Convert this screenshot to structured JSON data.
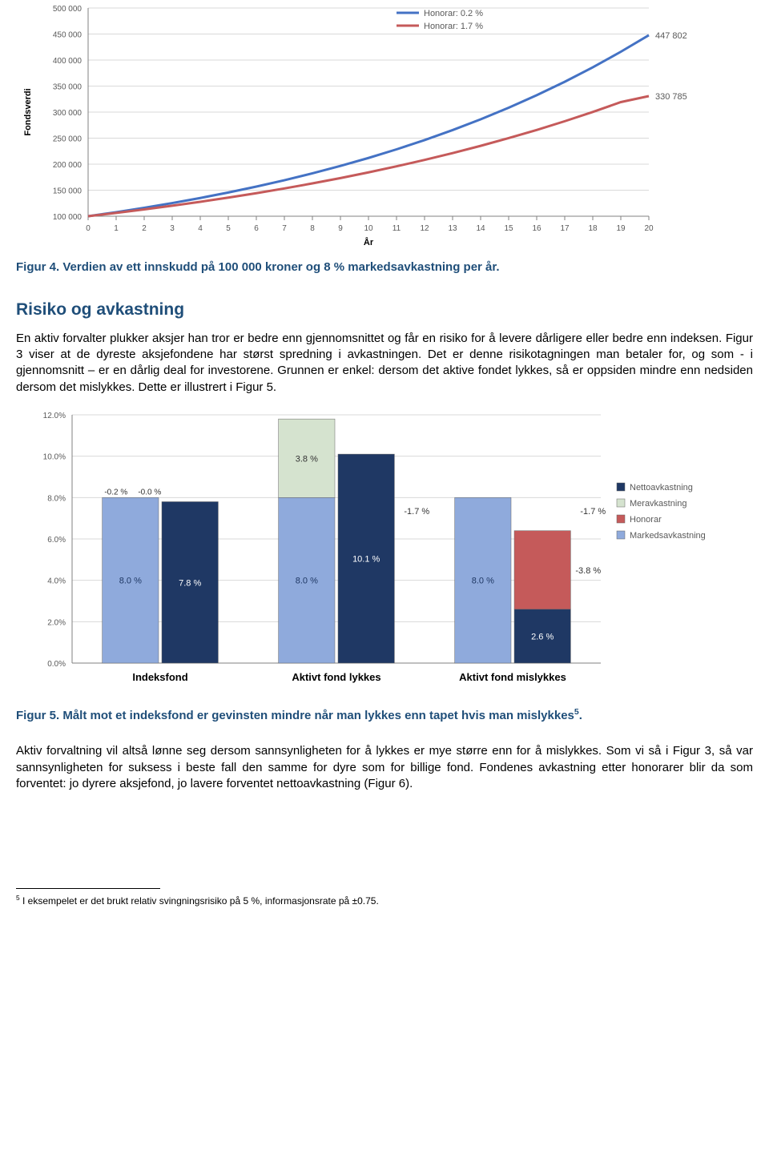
{
  "chart1": {
    "type": "line",
    "ylabel": "Fondsverdi",
    "xlabel": "År",
    "xlim": [
      0,
      20
    ],
    "xtick_step": 1,
    "ylim": [
      100000,
      500000
    ],
    "ytick_step": 50000,
    "yticks_labels": [
      "100 000",
      "150 000",
      "200 000",
      "250 000",
      "300 000",
      "350 000",
      "400 000",
      "450 000",
      "500 000"
    ],
    "background_color": "#ffffff",
    "grid_color": "#d9d9d9",
    "axis_color": "#808080",
    "label_fontsize": 11,
    "tick_fontsize": 10,
    "series": [
      {
        "name": "Honorar: 0.2 %",
        "color": "#4472c4",
        "line_width": 3,
        "x": [
          0,
          1,
          2,
          3,
          4,
          5,
          6,
          7,
          8,
          9,
          10,
          11,
          12,
          13,
          14,
          15,
          16,
          17,
          18,
          19,
          20
        ],
        "y": [
          100000,
          107800,
          116208,
          125272,
          135043,
          145575,
          156929,
          169169,
          182365,
          196590,
          211926,
          228459,
          246279,
          265483,
          286172,
          308454,
          332444,
          358270,
          386059,
          415952,
          447802
        ],
        "end_label": "447 802"
      },
      {
        "name": "Honorar: 1.7 %",
        "color": "#c55a5a",
        "line_width": 3,
        "x": [
          0,
          1,
          2,
          3,
          4,
          5,
          6,
          7,
          8,
          9,
          10,
          11,
          12,
          13,
          14,
          15,
          16,
          17,
          18,
          19,
          20
        ],
        "y": [
          100000,
          106300,
          113000,
          120118,
          127685,
          135729,
          144280,
          153369,
          163031,
          173302,
          184219,
          195823,
          208158,
          221269,
          235206,
          250019,
          265765,
          282503,
          300300,
          319219,
          330785
        ],
        "end_label": "330 785"
      }
    ]
  },
  "caption1": "Figur 4. Verdien av ett innskudd på 100 000 kroner og 8 % markedsavkastning per år.",
  "section_title": "Risiko og avkastning",
  "para1": "En aktiv forvalter plukker aksjer han tror er bedre enn gjennomsnittet og får en risiko for å levere dårligere eller bedre enn indeksen. Figur 3 viser at de dyreste aksjefondene har størst spredning i avkastningen. Det er denne risikotagningen man betaler for, og som - i gjennomsnitt – er en dårlig deal for investorene. Grunnen er enkel: dersom det aktive fondet lykkes, så er oppsiden mindre enn nedsiden dersom det mislykkes. Dette er illustrert i Figur 5.",
  "chart2": {
    "type": "stacked-bar",
    "xlabel_fontsize": 13,
    "ylabel_fontsize": 10,
    "ylim": [
      0,
      12
    ],
    "ytick_step": 2,
    "yticks_labels": [
      "0.0%",
      "2.0%",
      "4.0%",
      "6.0%",
      "8.0%",
      "10.0%",
      "12.0%"
    ],
    "background_color": "#ffffff",
    "grid_color": "#d9d9d9",
    "axis_color": "#808080",
    "xlabel_weight": "bold",
    "bar_width": 0.32,
    "legend": [
      {
        "label": "Nettoavkastning",
        "color": "#1f3864"
      },
      {
        "label": "Meravkastning",
        "color": "#d5e3cf"
      },
      {
        "label": "Honorar",
        "color": "#c55a5a"
      },
      {
        "label": "Markedsavkastning",
        "color": "#8faadc"
      }
    ],
    "categories": [
      {
        "name": "Indeksfond",
        "left": {
          "segments": [
            {
              "key": "markedsavkastning",
              "value": 8.0,
              "label": "8.0 %",
              "color": "#8faadc"
            }
          ],
          "top_labels": [
            "-0.2 %",
            "-0.0 %"
          ]
        },
        "right": {
          "segments": [
            {
              "key": "nettoavkastning",
              "value": 7.8,
              "label": "7.8 %",
              "color": "#1f3864"
            }
          ]
        }
      },
      {
        "name": "Aktivt fond lykkes",
        "left": {
          "segments": [
            {
              "key": "markedsavkastning",
              "value": 8.0,
              "label": "8.0 %",
              "color": "#8faadc"
            },
            {
              "key": "meravkastning",
              "value": 3.8,
              "label": "3.8 %",
              "color": "#d5e3cf"
            }
          ],
          "float_label": {
            "text": "-1.7 %",
            "y": 7.2
          }
        },
        "right": {
          "segments": [
            {
              "key": "nettoavkastning",
              "value": 10.1,
              "label": "10.1 %",
              "color": "#1f3864"
            }
          ]
        }
      },
      {
        "name": "Aktivt fond mislykkes",
        "left": {
          "segments": [
            {
              "key": "markedsavkastning",
              "value": 8.0,
              "label": "8.0 %",
              "color": "#8faadc"
            }
          ],
          "float_label": {
            "text": "-1.7 %",
            "y": 7.2
          }
        },
        "right": {
          "segments": [
            {
              "key": "nettoavkastning",
              "value": 2.6,
              "label": "2.6 %",
              "color": "#1f3864"
            }
          ],
          "float_negative": {
            "text": "-3.8 %",
            "y_top": 6.4,
            "y_bot": 2.6,
            "color": "#c55a5a"
          }
        }
      }
    ]
  },
  "caption2_prefix": "Figur 5. Målt mot et indeksfond er gevinsten mindre når man lykkes enn tapet hvis man mislykkes",
  "caption2_sup": "5",
  "caption2_suffix": ".",
  "para2": "Aktiv forvaltning vil altså lønne seg dersom sannsynligheten for å lykkes er mye større enn for å mislykkes. Som vi så i Figur 3, så var sannsynligheten for suksess i beste fall den samme for dyre som for billige fond. Fondenes avkastning etter honorarer blir da som forventet: jo dyrere aksjefond, jo lavere forventet nettoavkastning (Figur 6).",
  "footnote_num": "5",
  "footnote_text": " I eksempelet er det brukt relativ svingningsrisiko på 5 %, informasjonsrate på ±0.75."
}
